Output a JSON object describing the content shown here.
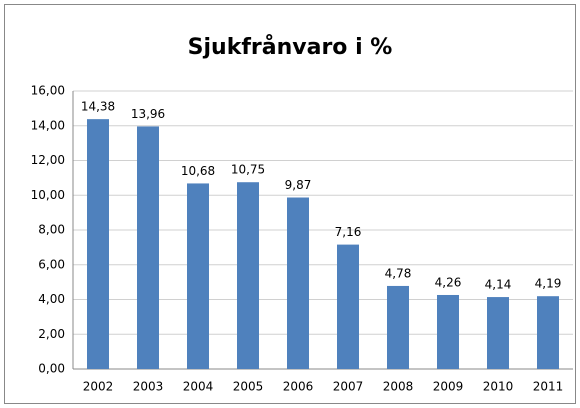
{
  "chart_data": {
    "type": "bar",
    "title": "Sjukfrånvaro i %",
    "categories": [
      "2002",
      "2003",
      "2004",
      "2005",
      "2006",
      "2007",
      "2008",
      "2009",
      "2010",
      "2011"
    ],
    "values": [
      14.38,
      13.96,
      10.68,
      10.75,
      9.87,
      7.16,
      4.78,
      4.26,
      4.14,
      4.19
    ],
    "value_labels": [
      "14,38",
      "13,96",
      "10,68",
      "10,75",
      "9,87",
      "7,16",
      "4,78",
      "4,26",
      "4,14",
      "4,19"
    ],
    "color": "#4f81bd",
    "ylim": [
      0,
      16
    ],
    "yticks": [
      {
        "value": 0,
        "label": "0,00"
      },
      {
        "value": 2,
        "label": "2,00"
      },
      {
        "value": 4,
        "label": "4,00"
      },
      {
        "value": 6,
        "label": "6,00"
      },
      {
        "value": 8,
        "label": "8,00"
      },
      {
        "value": 10,
        "label": "10,00"
      },
      {
        "value": 12,
        "label": "12,00"
      },
      {
        "value": 14,
        "label": "14,00"
      },
      {
        "value": 16,
        "label": "16,00"
      }
    ],
    "grid": true
  }
}
